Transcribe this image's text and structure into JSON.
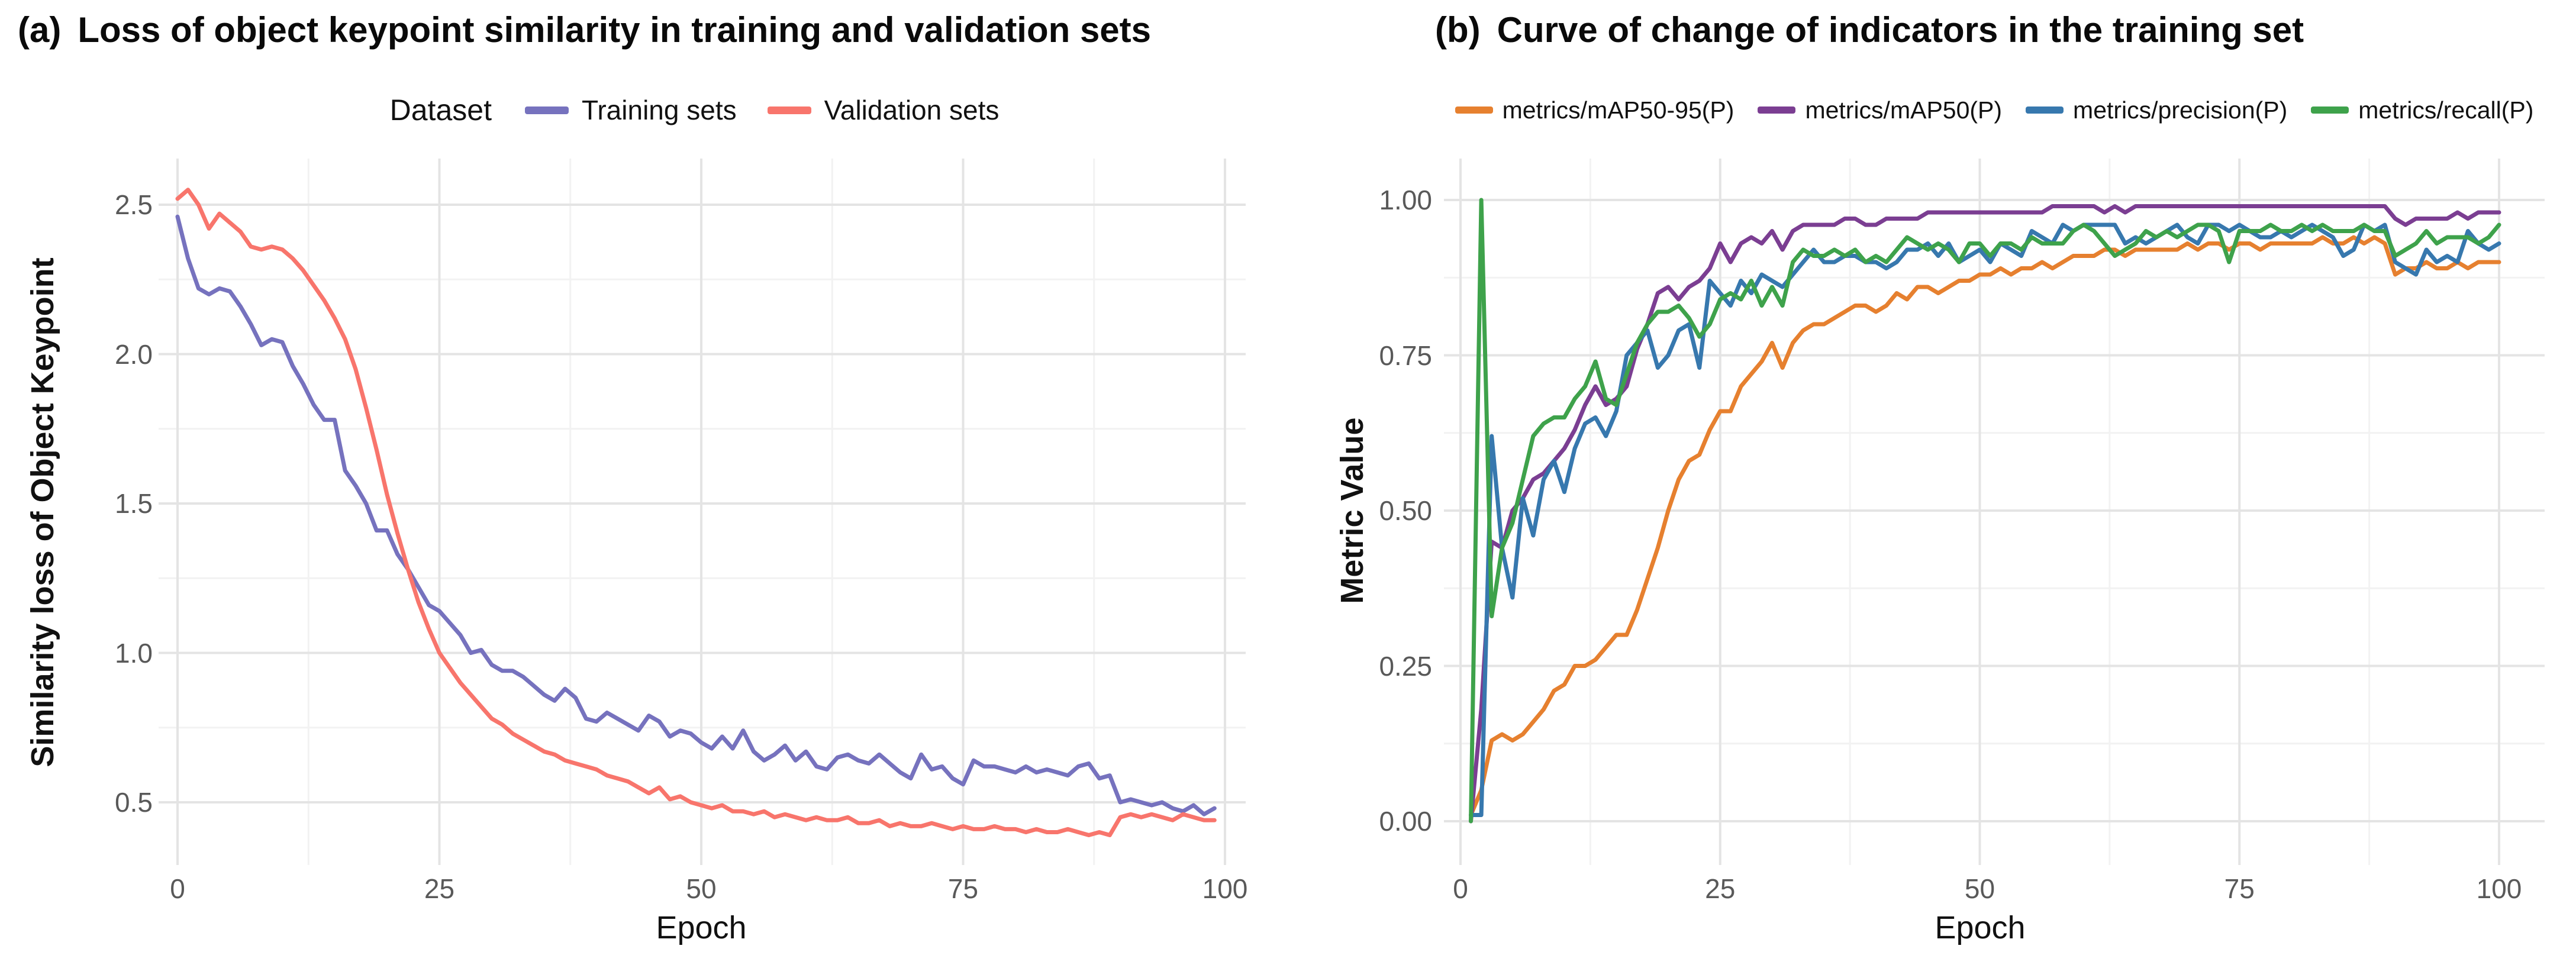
{
  "chart_data": [
    {
      "type": "line",
      "panel_label": "(a)",
      "title": "Loss of object keypoint similarity in training and validation sets",
      "xlabel": "Epoch",
      "ylabel": "Similarity loss of Object Keypoint",
      "legend_title": "Dataset",
      "legend_position": "top",
      "grid": true,
      "xlim": [
        0,
        100
      ],
      "ylim": [
        0.28,
        2.65
      ],
      "x_start": 0,
      "xticks": [
        0,
        25,
        50,
        75,
        100
      ],
      "xtick_labels": [
        "0",
        "25",
        "50",
        "75",
        "100"
      ],
      "yticks": [
        0.5,
        1.0,
        1.5,
        2.0,
        2.5
      ],
      "ytick_labels": [
        "0.5",
        "1.0",
        "1.5",
        "2.0",
        "2.5"
      ],
      "series": [
        {
          "name": "Training sets",
          "color": "#7672BE",
          "values": [
            2.46,
            2.32,
            2.22,
            2.2,
            2.22,
            2.21,
            2.16,
            2.1,
            2.03,
            2.05,
            2.04,
            1.96,
            1.9,
            1.83,
            1.78,
            1.78,
            1.61,
            1.56,
            1.5,
            1.41,
            1.41,
            1.33,
            1.28,
            1.22,
            1.16,
            1.14,
            1.1,
            1.06,
            1.0,
            1.01,
            0.96,
            0.94,
            0.94,
            0.92,
            0.89,
            0.86,
            0.84,
            0.88,
            0.85,
            0.78,
            0.77,
            0.8,
            0.78,
            0.76,
            0.74,
            0.79,
            0.77,
            0.72,
            0.74,
            0.73,
            0.7,
            0.68,
            0.72,
            0.68,
            0.74,
            0.67,
            0.64,
            0.66,
            0.69,
            0.64,
            0.67,
            0.62,
            0.61,
            0.65,
            0.66,
            0.64,
            0.63,
            0.66,
            0.63,
            0.6,
            0.58,
            0.66,
            0.61,
            0.62,
            0.58,
            0.56,
            0.64,
            0.62,
            0.62,
            0.61,
            0.6,
            0.62,
            0.6,
            0.61,
            0.6,
            0.59,
            0.62,
            0.63,
            0.58,
            0.59,
            0.5,
            0.51,
            0.5,
            0.49,
            0.5,
            0.48,
            0.47,
            0.49,
            0.46,
            0.48
          ]
        },
        {
          "name": "Validation sets",
          "color": "#F8756C",
          "values": [
            2.52,
            2.55,
            2.5,
            2.42,
            2.47,
            2.44,
            2.41,
            2.36,
            2.35,
            2.36,
            2.35,
            2.32,
            2.28,
            2.23,
            2.18,
            2.12,
            2.05,
            1.95,
            1.82,
            1.68,
            1.53,
            1.4,
            1.28,
            1.17,
            1.08,
            1.0,
            0.95,
            0.9,
            0.86,
            0.82,
            0.78,
            0.76,
            0.73,
            0.71,
            0.69,
            0.67,
            0.66,
            0.64,
            0.63,
            0.62,
            0.61,
            0.59,
            0.58,
            0.57,
            0.55,
            0.53,
            0.55,
            0.51,
            0.52,
            0.5,
            0.49,
            0.48,
            0.49,
            0.47,
            0.47,
            0.46,
            0.47,
            0.45,
            0.46,
            0.45,
            0.44,
            0.45,
            0.44,
            0.44,
            0.45,
            0.43,
            0.43,
            0.44,
            0.42,
            0.43,
            0.42,
            0.42,
            0.43,
            0.42,
            0.41,
            0.42,
            0.41,
            0.41,
            0.42,
            0.41,
            0.41,
            0.4,
            0.41,
            0.4,
            0.4,
            0.41,
            0.4,
            0.39,
            0.4,
            0.39,
            0.45,
            0.46,
            0.45,
            0.46,
            0.45,
            0.44,
            0.46,
            0.45,
            0.44,
            0.44
          ]
        }
      ]
    },
    {
      "type": "line",
      "panel_label": "(b)",
      "title": "Curve of change of indicators in the training set",
      "xlabel": "Epoch",
      "ylabel": "Metric Value",
      "legend_title": "",
      "legend_position": "top",
      "grid": true,
      "xlim": [
        0,
        100
      ],
      "ylim": [
        -0.05,
        1.07
      ],
      "x_start": 1,
      "xticks": [
        0,
        25,
        50,
        75,
        100
      ],
      "xtick_labels": [
        "0",
        "25",
        "50",
        "75",
        "100"
      ],
      "yticks": [
        0.0,
        0.25,
        0.5,
        0.75,
        1.0
      ],
      "ytick_labels": [
        "0.00",
        "0.25",
        "0.50",
        "0.75",
        "1.00"
      ],
      "series": [
        {
          "name": "metrics/mAP50-95(P)",
          "color": "#E6802F",
          "values": [
            0.01,
            0.05,
            0.13,
            0.14,
            0.13,
            0.14,
            0.16,
            0.18,
            0.21,
            0.22,
            0.25,
            0.25,
            0.26,
            0.28,
            0.3,
            0.3,
            0.34,
            0.39,
            0.44,
            0.5,
            0.55,
            0.58,
            0.59,
            0.63,
            0.66,
            0.66,
            0.7,
            0.72,
            0.74,
            0.77,
            0.73,
            0.77,
            0.79,
            0.8,
            0.8,
            0.81,
            0.82,
            0.83,
            0.83,
            0.82,
            0.83,
            0.85,
            0.84,
            0.86,
            0.86,
            0.85,
            0.86,
            0.87,
            0.87,
            0.88,
            0.88,
            0.89,
            0.88,
            0.89,
            0.89,
            0.9,
            0.89,
            0.9,
            0.91,
            0.91,
            0.91,
            0.92,
            0.92,
            0.91,
            0.92,
            0.92,
            0.92,
            0.92,
            0.92,
            0.93,
            0.92,
            0.93,
            0.93,
            0.92,
            0.93,
            0.93,
            0.92,
            0.93,
            0.93,
            0.93,
            0.93,
            0.93,
            0.94,
            0.93,
            0.93,
            0.94,
            0.93,
            0.94,
            0.93,
            0.88,
            0.89,
            0.89,
            0.9,
            0.89,
            0.89,
            0.9,
            0.89,
            0.9,
            0.9,
            0.9
          ]
        },
        {
          "name": "metrics/mAP50(P)",
          "color": "#7B3E92",
          "values": [
            0.0,
            0.18,
            0.45,
            0.44,
            0.5,
            0.52,
            0.55,
            0.56,
            0.58,
            0.6,
            0.63,
            0.67,
            0.7,
            0.67,
            0.68,
            0.7,
            0.76,
            0.8,
            0.85,
            0.86,
            0.84,
            0.86,
            0.87,
            0.89,
            0.93,
            0.9,
            0.93,
            0.94,
            0.93,
            0.95,
            0.92,
            0.95,
            0.96,
            0.96,
            0.96,
            0.96,
            0.97,
            0.97,
            0.96,
            0.96,
            0.97,
            0.97,
            0.97,
            0.97,
            0.98,
            0.98,
            0.98,
            0.98,
            0.98,
            0.98,
            0.98,
            0.98,
            0.98,
            0.98,
            0.98,
            0.98,
            0.99,
            0.99,
            0.99,
            0.99,
            0.99,
            0.98,
            0.99,
            0.98,
            0.99,
            0.99,
            0.99,
            0.99,
            0.99,
            0.99,
            0.99,
            0.99,
            0.99,
            0.99,
            0.99,
            0.99,
            0.99,
            0.99,
            0.99,
            0.99,
            0.99,
            0.99,
            0.99,
            0.99,
            0.99,
            0.99,
            0.99,
            0.99,
            0.99,
            0.97,
            0.96,
            0.97,
            0.97,
            0.97,
            0.97,
            0.98,
            0.97,
            0.98,
            0.98,
            0.98
          ]
        },
        {
          "name": "metrics/precision(P)",
          "color": "#3778AE",
          "values": [
            0.01,
            0.01,
            0.62,
            0.44,
            0.36,
            0.52,
            0.46,
            0.55,
            0.58,
            0.53,
            0.6,
            0.64,
            0.65,
            0.62,
            0.66,
            0.75,
            0.77,
            0.79,
            0.73,
            0.75,
            0.79,
            0.8,
            0.73,
            0.87,
            0.85,
            0.83,
            0.87,
            0.85,
            0.88,
            0.87,
            0.86,
            0.88,
            0.9,
            0.92,
            0.9,
            0.9,
            0.91,
            0.91,
            0.9,
            0.9,
            0.89,
            0.9,
            0.92,
            0.92,
            0.93,
            0.91,
            0.93,
            0.9,
            0.91,
            0.92,
            0.9,
            0.93,
            0.92,
            0.91,
            0.95,
            0.94,
            0.93,
            0.96,
            0.95,
            0.96,
            0.96,
            0.96,
            0.96,
            0.93,
            0.94,
            0.93,
            0.94,
            0.95,
            0.96,
            0.94,
            0.93,
            0.96,
            0.96,
            0.95,
            0.96,
            0.95,
            0.94,
            0.94,
            0.95,
            0.94,
            0.95,
            0.96,
            0.95,
            0.94,
            0.91,
            0.92,
            0.96,
            0.95,
            0.96,
            0.9,
            0.89,
            0.88,
            0.92,
            0.9,
            0.91,
            0.9,
            0.95,
            0.93,
            0.92,
            0.93
          ]
        },
        {
          "name": "metrics/recall(P)",
          "color": "#3EA24B",
          "values": [
            0.0,
            1.0,
            0.33,
            0.44,
            0.48,
            0.55,
            0.62,
            0.64,
            0.65,
            0.65,
            0.68,
            0.7,
            0.74,
            0.68,
            0.67,
            0.72,
            0.77,
            0.8,
            0.82,
            0.82,
            0.83,
            0.81,
            0.78,
            0.8,
            0.84,
            0.85,
            0.84,
            0.87,
            0.83,
            0.86,
            0.83,
            0.9,
            0.92,
            0.91,
            0.91,
            0.92,
            0.91,
            0.92,
            0.9,
            0.91,
            0.9,
            0.92,
            0.94,
            0.93,
            0.92,
            0.93,
            0.92,
            0.9,
            0.93,
            0.93,
            0.91,
            0.93,
            0.93,
            0.92,
            0.94,
            0.93,
            0.93,
            0.93,
            0.95,
            0.96,
            0.95,
            0.93,
            0.91,
            0.92,
            0.93,
            0.95,
            0.94,
            0.95,
            0.94,
            0.95,
            0.96,
            0.96,
            0.95,
            0.9,
            0.95,
            0.95,
            0.95,
            0.96,
            0.95,
            0.95,
            0.96,
            0.95,
            0.96,
            0.95,
            0.95,
            0.95,
            0.96,
            0.95,
            0.95,
            0.91,
            0.92,
            0.93,
            0.95,
            0.93,
            0.94,
            0.94,
            0.94,
            0.93,
            0.94,
            0.96
          ]
        }
      ]
    }
  ]
}
